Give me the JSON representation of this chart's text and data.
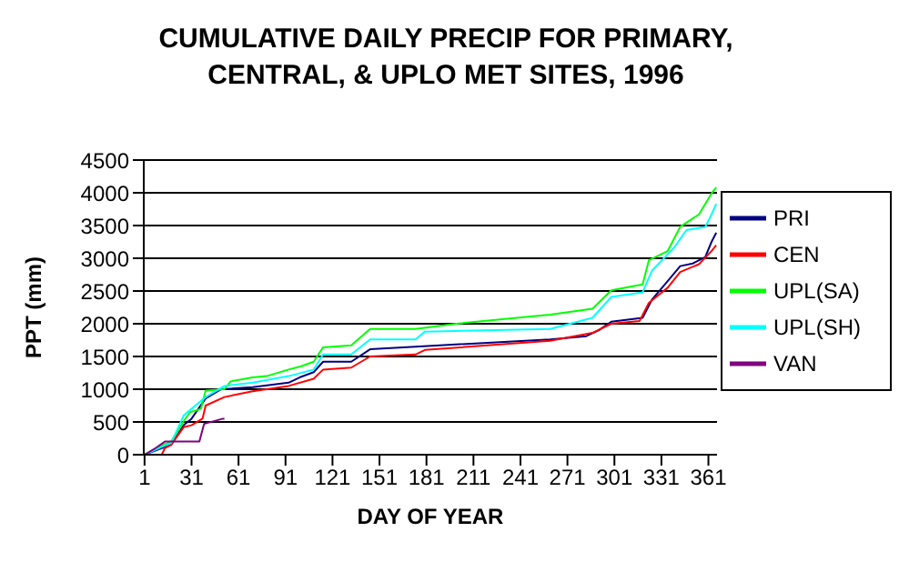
{
  "chart_data": {
    "type": "line",
    "title": "CUMULATIVE DAILY PRECIP FOR PRIMARY, CENTRAL, & UPLO MET SITES, 1996",
    "xlabel": "DAY OF YEAR",
    "ylabel": "PPT (mm)",
    "xlim": [
      0.5,
      366.5
    ],
    "xticks": [
      1,
      31,
      61,
      91,
      121,
      151,
      181,
      211,
      241,
      271,
      301,
      331,
      361
    ],
    "ylim": [
      0,
      4500
    ],
    "yticks": [
      0,
      500,
      1000,
      1500,
      2000,
      2500,
      3000,
      3500,
      4000,
      4500
    ],
    "grid": "y",
    "legend": "right",
    "marker": "none",
    "line_style": "solid",
    "series": [
      {
        "name": "PRI",
        "color": "#000080",
        "x": [
          1,
          12,
          18,
          26,
          31,
          40,
          50,
          70,
          93,
          100,
          109,
          115,
          133,
          145,
          174,
          260,
          283,
          291,
          299,
          319,
          325,
          335,
          343,
          351,
          359,
          363,
          366
        ],
        "values": [
          0,
          100,
          150,
          450,
          550,
          860,
          1000,
          1030,
          1100,
          1180,
          1260,
          1420,
          1420,
          1610,
          1650,
          1760,
          1810,
          1900,
          2030,
          2090,
          2370,
          2650,
          2880,
          2920,
          3020,
          3250,
          3390
        ]
      },
      {
        "name": "CEN",
        "color": "#ff0000",
        "x": [
          1,
          12,
          14,
          18,
          26,
          31,
          38,
          40,
          52,
          70,
          93,
          109,
          115,
          133,
          145,
          174,
          180,
          260,
          287,
          299,
          317,
          323,
          335,
          343,
          355,
          363,
          366
        ],
        "values": [
          0,
          0,
          100,
          150,
          420,
          450,
          550,
          750,
          880,
          970,
          1050,
          1160,
          1300,
          1330,
          1500,
          1530,
          1600,
          1740,
          1860,
          2000,
          2040,
          2320,
          2550,
          2790,
          2910,
          3110,
          3200
        ]
      },
      {
        "name": "UPL(SA)",
        "color": "#00ff00",
        "x": [
          1,
          12,
          18,
          26,
          30,
          37,
          40,
          52,
          56,
          70,
          79,
          93,
          101,
          109,
          115,
          133,
          145,
          174,
          200,
          260,
          287,
          299,
          319,
          323,
          335,
          343,
          355,
          363,
          366
        ],
        "values": [
          0,
          140,
          200,
          510,
          650,
          700,
          980,
          1000,
          1120,
          1180,
          1200,
          1300,
          1350,
          1420,
          1640,
          1670,
          1920,
          1920,
          2000,
          2140,
          2230,
          2510,
          2600,
          2970,
          3110,
          3480,
          3670,
          3990,
          4080
        ]
      },
      {
        "name": "UPL(SH)",
        "color": "#00ffff",
        "x": [
          1,
          12,
          18,
          26,
          40,
          52,
          70,
          93,
          109,
          115,
          133,
          145,
          174,
          180,
          260,
          287,
          299,
          319,
          325,
          339,
          347,
          359,
          363,
          366
        ],
        "values": [
          0,
          120,
          180,
          600,
          880,
          1050,
          1100,
          1200,
          1300,
          1530,
          1530,
          1760,
          1760,
          1880,
          1920,
          2090,
          2410,
          2480,
          2810,
          3160,
          3430,
          3480,
          3670,
          3830
        ]
      },
      {
        "name": "VAN",
        "color": "#800080",
        "x": [
          1,
          8,
          14,
          36,
          39,
          51,
          52
        ],
        "values": [
          0,
          100,
          200,
          200,
          470,
          550,
          550
        ]
      }
    ]
  }
}
